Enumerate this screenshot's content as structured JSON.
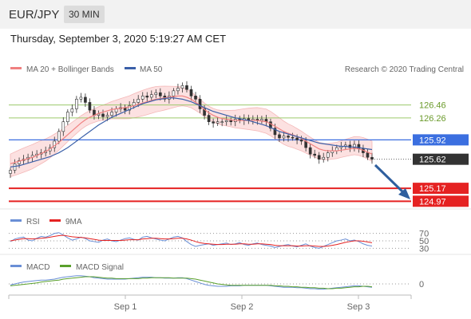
{
  "header": {
    "pair": "EUR/JPY",
    "timeframe": "30 MIN"
  },
  "datetime": "Thursday, September 3, 2020 5:19:27 AM CET",
  "legend": {
    "ma20": "MA 20 + Bollinger Bands",
    "ma50": "MA 50",
    "credit": "Research © 2020 Trading Central"
  },
  "colors": {
    "ma20": "#f08080",
    "ma50": "#3a5fa8",
    "resistance": "#9cc96b",
    "pivot": "#3b6fe0",
    "support": "#e52222",
    "current": "#333333"
  },
  "rsi_panel": {
    "label": "RSI",
    "ma_label": "9MA",
    "levels": [
      "70",
      "50",
      "30"
    ]
  },
  "macd_panel": {
    "label": "MACD",
    "signal_label": "MACD Signal",
    "zero": "0"
  },
  "chart_data": {
    "type": "candlestick",
    "price_range": [
      124.9,
      126.9
    ],
    "levels": [
      {
        "label": "126.46",
        "value": 126.46,
        "kind": "resistance"
      },
      {
        "label": "126.26",
        "value": 126.26,
        "kind": "resistance"
      },
      {
        "label": "125.92",
        "value": 125.92,
        "kind": "pivot"
      },
      {
        "label": "125.62",
        "value": 125.62,
        "kind": "current"
      },
      {
        "label": "125.17",
        "value": 125.17,
        "kind": "support"
      },
      {
        "label": "124.97",
        "value": 124.97,
        "kind": "support"
      }
    ],
    "x_ticks": [
      "Sep 1",
      "Sep 2",
      "Sep 3"
    ],
    "closes": [
      125.45,
      125.55,
      125.6,
      125.62,
      125.65,
      125.68,
      125.7,
      125.72,
      125.75,
      125.8,
      125.9,
      126.05,
      126.2,
      126.35,
      126.4,
      126.55,
      126.58,
      126.5,
      126.38,
      126.3,
      126.32,
      126.28,
      126.3,
      126.35,
      126.4,
      126.42,
      126.38,
      126.45,
      126.5,
      126.55,
      126.6,
      126.58,
      126.62,
      126.65,
      126.6,
      126.55,
      126.6,
      126.68,
      126.72,
      126.76,
      126.7,
      126.6,
      126.55,
      126.4,
      126.3,
      126.2,
      126.18,
      126.2,
      126.2,
      126.22,
      126.2,
      126.24,
      126.22,
      126.25,
      126.22,
      126.24,
      126.22,
      126.24,
      126.2,
      126.1,
      126.0,
      125.95,
      125.98,
      125.96,
      125.95,
      125.92,
      125.9,
      125.8,
      125.7,
      125.68,
      125.62,
      125.65,
      125.72,
      125.75,
      125.8,
      125.82,
      125.84,
      125.8,
      125.85,
      125.78,
      125.72,
      125.65,
      125.62
    ],
    "ma20": [
      125.55,
      125.57,
      125.59,
      125.61,
      125.63,
      125.65,
      125.68,
      125.71,
      125.74,
      125.78,
      125.83,
      125.88,
      125.94,
      126.0,
      126.06,
      126.12,
      126.18,
      126.23,
      126.27,
      126.3,
      126.33,
      126.35,
      126.37,
      126.39,
      126.4,
      126.41,
      126.42,
      126.43,
      126.45,
      126.47,
      126.49,
      126.51,
      126.53,
      126.55,
      126.56,
      126.57,
      126.58,
      126.59,
      126.6,
      126.6,
      126.58,
      126.55,
      126.5,
      126.45,
      126.39,
      126.34,
      126.3,
      126.27,
      126.25,
      126.24,
      126.23,
      126.22,
      126.22,
      126.22,
      126.22,
      126.22,
      126.22,
      126.21,
      126.2,
      126.17,
      126.13,
      126.09,
      126.05,
      126.02,
      126.0,
      125.97,
      125.94,
      125.9,
      125.86,
      125.82,
      125.78,
      125.76,
      125.75,
      125.75,
      125.75,
      125.76,
      125.77,
      125.78,
      125.79,
      125.78,
      125.76,
      125.73,
      125.7
    ],
    "ma50": [
      125.5,
      125.51,
      125.52,
      125.54,
      125.56,
      125.58,
      125.6,
      125.62,
      125.64,
      125.66,
      125.69,
      125.72,
      125.76,
      125.8,
      125.85,
      125.9,
      125.95,
      126.0,
      126.05,
      126.1,
      126.15,
      126.19,
      126.23,
      126.27,
      126.3,
      126.33,
      126.36,
      126.39,
      126.42,
      126.45,
      126.48,
      126.5,
      126.52,
      126.54,
      126.55,
      126.56,
      126.57,
      126.57,
      126.56,
      126.55,
      126.53,
      126.51,
      126.48,
      126.45,
      126.42,
      126.39,
      126.36,
      126.34,
      126.32,
      126.3,
      126.28,
      126.26,
      126.25,
      126.23,
      126.22,
      126.2,
      126.18,
      126.16,
      126.14,
      126.11,
      126.08,
      126.05,
      126.03,
      126.01,
      125.99,
      125.97,
      125.95,
      125.93,
      125.91,
      125.89,
      125.87,
      125.86,
      125.85,
      125.84,
      125.83,
      125.82,
      125.82,
      125.81,
      125.81,
      125.8,
      125.79,
      125.78,
      125.77
    ],
    "bb_width": 0.15,
    "rsi": [
      48,
      55,
      58,
      60,
      52,
      50,
      57,
      62,
      60,
      64,
      70,
      72,
      66,
      58,
      52,
      55,
      60,
      56,
      50,
      48,
      46,
      52,
      55,
      50,
      48,
      52,
      56,
      58,
      54,
      52,
      60,
      62,
      58,
      55,
      52,
      50,
      55,
      60,
      62,
      58,
      48,
      40,
      35,
      38,
      40,
      42,
      38,
      40,
      42,
      44,
      40,
      42,
      45,
      40,
      38,
      42,
      44,
      40,
      38,
      36,
      32,
      35,
      38,
      40,
      36,
      34,
      38,
      42,
      36,
      32,
      30,
      35,
      40,
      45,
      50,
      52,
      55,
      50,
      52,
      48,
      42,
      38,
      36
    ],
    "rsi_ma": [
      50,
      52,
      54,
      56,
      56,
      55,
      56,
      57,
      58,
      60,
      62,
      64,
      65,
      63,
      61,
      60,
      59,
      58,
      56,
      54,
      52,
      51,
      51,
      51,
      51,
      51,
      52,
      53,
      53,
      53,
      55,
      56,
      57,
      57,
      56,
      55,
      55,
      56,
      57,
      57,
      55,
      52,
      48,
      45,
      43,
      42,
      41,
      40,
      40,
      41,
      41,
      41,
      42,
      42,
      41,
      41,
      42,
      42,
      41,
      40,
      38,
      37,
      37,
      37,
      37,
      36,
      36,
      37,
      37,
      36,
      35,
      35,
      36,
      38,
      40,
      43,
      46,
      48,
      50,
      50,
      49,
      47,
      45
    ],
    "macd": [
      -0.02,
      0.0,
      0.02,
      0.04,
      0.05,
      0.06,
      0.07,
      0.08,
      0.08,
      0.09,
      0.1,
      0.12,
      0.14,
      0.15,
      0.16,
      0.17,
      0.17,
      0.16,
      0.15,
      0.13,
      0.12,
      0.11,
      0.1,
      0.1,
      0.1,
      0.1,
      0.1,
      0.11,
      0.12,
      0.13,
      0.14,
      0.14,
      0.14,
      0.13,
      0.13,
      0.12,
      0.12,
      0.12,
      0.13,
      0.13,
      0.11,
      0.08,
      0.05,
      0.02,
      -0.01,
      -0.03,
      -0.04,
      -0.05,
      -0.05,
      -0.05,
      -0.04,
      -0.04,
      -0.04,
      -0.03,
      -0.03,
      -0.03,
      -0.03,
      -0.03,
      -0.03,
      -0.04,
      -0.05,
      -0.06,
      -0.07,
      -0.07,
      -0.07,
      -0.08,
      -0.08,
      -0.09,
      -0.1,
      -0.1,
      -0.11,
      -0.11,
      -0.1,
      -0.09,
      -0.08,
      -0.07,
      -0.06,
      -0.05,
      -0.04,
      -0.04,
      -0.05,
      -0.06,
      -0.07
    ],
    "macd_signal": [
      -0.04,
      -0.03,
      -0.02,
      -0.01,
      0.0,
      0.01,
      0.02,
      0.04,
      0.05,
      0.06,
      0.07,
      0.08,
      0.1,
      0.11,
      0.12,
      0.13,
      0.14,
      0.15,
      0.15,
      0.15,
      0.14,
      0.13,
      0.12,
      0.12,
      0.11,
      0.11,
      0.11,
      0.11,
      0.11,
      0.11,
      0.12,
      0.12,
      0.13,
      0.13,
      0.13,
      0.13,
      0.13,
      0.12,
      0.12,
      0.12,
      0.12,
      0.11,
      0.1,
      0.08,
      0.06,
      0.04,
      0.02,
      0.0,
      -0.01,
      -0.02,
      -0.03,
      -0.03,
      -0.03,
      -0.03,
      -0.03,
      -0.03,
      -0.03,
      -0.03,
      -0.03,
      -0.03,
      -0.04,
      -0.04,
      -0.05,
      -0.05,
      -0.06,
      -0.06,
      -0.07,
      -0.07,
      -0.08,
      -0.08,
      -0.09,
      -0.09,
      -0.1,
      -0.1,
      -0.09,
      -0.09,
      -0.08,
      -0.07,
      -0.06,
      -0.06,
      -0.05,
      -0.05,
      -0.06
    ]
  }
}
